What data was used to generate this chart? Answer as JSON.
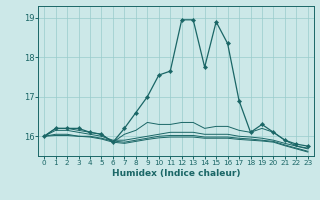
{
  "xlabel": "Humidex (Indice chaleur)",
  "bg_color": "#cce8e8",
  "grid_color": "#99cccc",
  "line_color": "#1a6666",
  "xlim": [
    -0.5,
    23.5
  ],
  "ylim": [
    15.5,
    19.3
  ],
  "yticks": [
    16,
    17,
    18,
    19
  ],
  "xticks": [
    0,
    1,
    2,
    3,
    4,
    5,
    6,
    7,
    8,
    9,
    10,
    11,
    12,
    13,
    14,
    15,
    16,
    17,
    18,
    19,
    20,
    21,
    22,
    23
  ],
  "series": [
    [
      16.0,
      16.2,
      16.2,
      16.2,
      16.1,
      16.05,
      15.85,
      16.2,
      16.6,
      17.0,
      17.55,
      17.65,
      18.95,
      18.95,
      17.75,
      18.9,
      18.35,
      16.9,
      16.1,
      16.3,
      16.1,
      15.9,
      15.8,
      15.75
    ],
    [
      16.0,
      16.2,
      16.2,
      16.15,
      16.1,
      16.05,
      15.85,
      16.05,
      16.15,
      16.35,
      16.3,
      16.3,
      16.35,
      16.35,
      16.2,
      16.25,
      16.25,
      16.15,
      16.1,
      16.2,
      16.1,
      15.9,
      15.75,
      15.7
    ],
    [
      16.0,
      16.15,
      16.15,
      16.1,
      16.05,
      16.0,
      15.9,
      15.9,
      15.95,
      16.0,
      16.05,
      16.1,
      16.1,
      16.1,
      16.05,
      16.05,
      16.05,
      16.0,
      15.98,
      15.95,
      15.9,
      15.82,
      15.75,
      15.68
    ],
    [
      16.0,
      16.05,
      16.05,
      16.0,
      16.0,
      15.95,
      15.88,
      15.85,
      15.9,
      15.95,
      16.0,
      16.02,
      16.02,
      16.02,
      15.98,
      15.98,
      15.98,
      15.95,
      15.93,
      15.9,
      15.87,
      15.78,
      15.7,
      15.62
    ],
    [
      16.0,
      16.02,
      16.02,
      16.0,
      15.98,
      15.93,
      15.85,
      15.82,
      15.87,
      15.92,
      15.96,
      15.98,
      15.98,
      15.98,
      15.95,
      15.95,
      15.95,
      15.92,
      15.9,
      15.88,
      15.85,
      15.76,
      15.68,
      15.6
    ]
  ]
}
